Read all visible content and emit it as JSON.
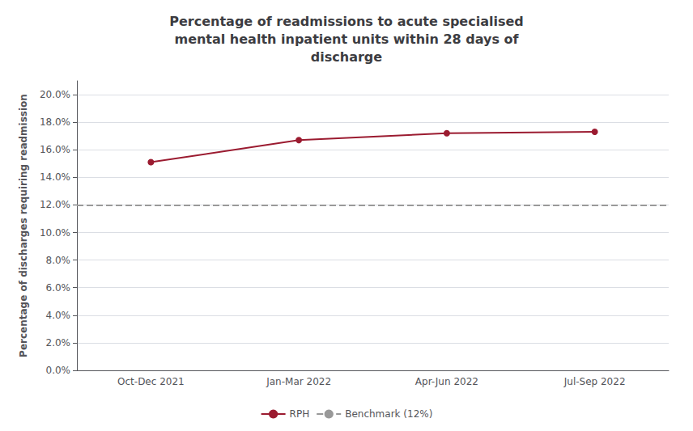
{
  "chart_data": {
    "type": "line",
    "title": "Percentage of readmissions to acute specialised\nmental health inpatient units within 28 days of\ndischarge",
    "y_label": "Percentage of discharges requiring readmission",
    "categories": [
      "Oct-Dec 2021",
      "Jan-Mar 2022",
      "Apr-Jun 2022",
      "Jul-Sep 2022"
    ],
    "series": [
      {
        "name": "RPH",
        "color": "#9B1B30",
        "values": [
          0.151,
          0.167,
          0.172,
          0.173
        ],
        "marker": "circle",
        "line_style": "solid"
      }
    ],
    "reference_line": {
      "name": "Benchmark (12%)",
      "value": 0.12,
      "color": "#999999",
      "line_style": "dashed"
    },
    "ylim": [
      0,
      0.21
    ],
    "yticks": [
      {
        "value": 0.0,
        "label": "0.0%"
      },
      {
        "value": 0.02,
        "label": "2.0%"
      },
      {
        "value": 0.04,
        "label": "4.0%"
      },
      {
        "value": 0.06,
        "label": "6.0%"
      },
      {
        "value": 0.08,
        "label": "8.0%"
      },
      {
        "value": 0.1,
        "label": "10.0%"
      },
      {
        "value": 0.12,
        "label": "12.0%"
      },
      {
        "value": 0.14,
        "label": "14.0%"
      },
      {
        "value": 0.16,
        "label": "16.0%"
      },
      {
        "value": 0.18,
        "label": "18.0%"
      },
      {
        "value": 0.2,
        "label": "20.0%"
      }
    ],
    "grid": true,
    "legend": "bottom"
  }
}
